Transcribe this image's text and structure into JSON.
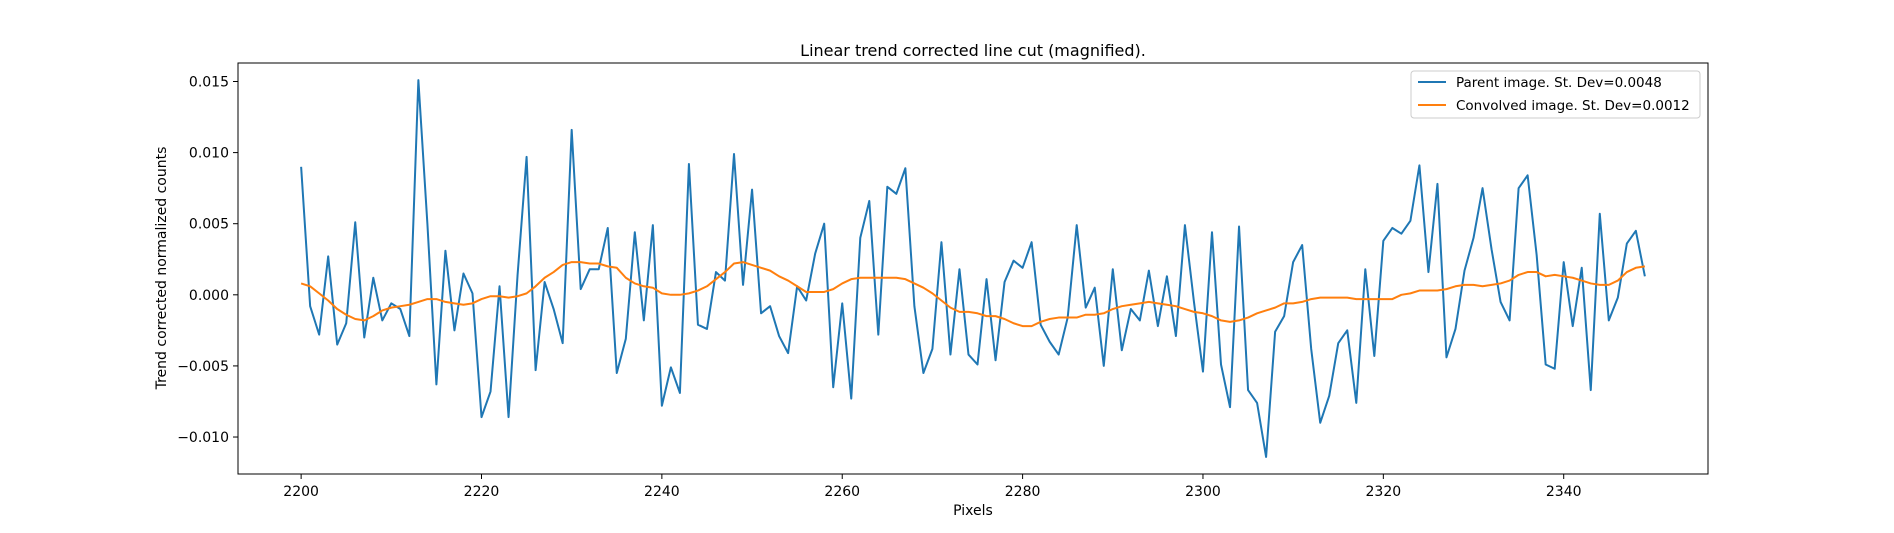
{
  "chart_data": {
    "type": "line",
    "title": "Linear trend corrected line cut (magnified).",
    "xlabel": "Pixels",
    "ylabel": "Trend corrected normalized counts",
    "xlim": [
      2193,
      2356
    ],
    "ylim": [
      -0.0126,
      0.0163
    ],
    "xticks": [
      2200,
      2220,
      2240,
      2260,
      2280,
      2300,
      2320,
      2340
    ],
    "xtick_labels": [
      "2200",
      "2220",
      "2240",
      "2260",
      "2280",
      "2300",
      "2320",
      "2340"
    ],
    "yticks": [
      0.015,
      0.01,
      0.005,
      0.0,
      -0.005,
      -0.01
    ],
    "ytick_labels": [
      "0.015",
      "0.010",
      "0.005",
      "0.000",
      "−0.005",
      "−0.010"
    ],
    "grid": false,
    "legend_position": "top-right",
    "x_start": 2200,
    "x_step": 1,
    "series": [
      {
        "name": "Parent image. St. Dev=0.0048",
        "color": "#1f77b4",
        "values": [
          0.009,
          -0.0008,
          -0.0028,
          0.0027,
          -0.0035,
          -0.002,
          0.0051,
          -0.003,
          0.0012,
          -0.0018,
          -0.0006,
          -0.001,
          -0.0029,
          0.0151,
          0.005,
          -0.0063,
          0.0031,
          -0.0025,
          0.0015,
          0.0001,
          -0.0086,
          -0.0068,
          0.0006,
          -0.0086,
          0.0014,
          0.0097,
          -0.0053,
          0.0009,
          -0.001,
          -0.0034,
          0.0116,
          0.0004,
          0.0018,
          0.0018,
          0.0047,
          -0.0055,
          -0.0031,
          0.0044,
          -0.0018,
          0.0049,
          -0.0078,
          -0.0051,
          -0.0069,
          0.0092,
          -0.0021,
          -0.0024,
          0.0016,
          0.001,
          0.0099,
          0.0007,
          0.0074,
          -0.0013,
          -0.0008,
          -0.0029,
          -0.0041,
          0.0006,
          -0.0004,
          0.0029,
          0.005,
          -0.0065,
          -0.0006,
          -0.0073,
          0.004,
          0.0066,
          -0.0028,
          0.0076,
          0.0071,
          0.0089,
          -0.0008,
          -0.0055,
          -0.0038,
          0.0037,
          -0.0042,
          0.0018,
          -0.0042,
          -0.0049,
          0.0011,
          -0.0046,
          0.0009,
          0.0024,
          0.0019,
          0.0037,
          -0.0021,
          -0.0033,
          -0.0042,
          -0.0016,
          0.0049,
          -0.0009,
          0.0005,
          -0.005,
          0.0018,
          -0.0039,
          -0.001,
          -0.0018,
          0.0017,
          -0.0022,
          0.0013,
          -0.0029,
          0.0049,
          -0.0005,
          -0.0054,
          0.0044,
          -0.0049,
          -0.0079,
          0.0048,
          -0.0067,
          -0.0076,
          -0.0114,
          -0.0026,
          -0.0015,
          0.0023,
          0.0035,
          -0.0038,
          -0.009,
          -0.0071,
          -0.0034,
          -0.0025,
          -0.0076,
          0.0018,
          -0.0043,
          0.0038,
          0.0047,
          0.0043,
          0.0052,
          0.0091,
          0.0016,
          0.0078,
          -0.0044,
          -0.0024,
          0.0017,
          0.004,
          0.0075,
          0.0032,
          -0.0005,
          -0.0018,
          0.0075,
          0.0084,
          0.0028,
          -0.0049,
          -0.0052,
          0.0023,
          -0.0022,
          0.0019,
          -0.0067,
          0.0057,
          -0.0018,
          -0.0002,
          0.0036,
          0.0045,
          0.0013
        ]
      },
      {
        "name": "Convolved image. St. Dev=0.0012",
        "color": "#ff7f0e",
        "values": [
          0.0008,
          0.0006,
          0.0001,
          -0.0004,
          -0.001,
          -0.0014,
          -0.0017,
          -0.0018,
          -0.0015,
          -0.0011,
          -0.0009,
          -0.0008,
          -0.0007,
          -0.0005,
          -0.0003,
          -0.0003,
          -0.0005,
          -0.0006,
          -0.0007,
          -0.0006,
          -0.0003,
          -0.0001,
          -0.0001,
          -0.0002,
          -0.0001,
          0.0001,
          0.0006,
          0.0012,
          0.0016,
          0.0021,
          0.0023,
          0.0023,
          0.0022,
          0.0022,
          0.002,
          0.0019,
          0.0012,
          0.0008,
          0.0006,
          0.0005,
          0.0001,
          0.0,
          0.0,
          0.0001,
          0.0003,
          0.0006,
          0.0011,
          0.0016,
          0.0022,
          0.0023,
          0.0021,
          0.0019,
          0.0017,
          0.0013,
          0.001,
          0.0006,
          0.0002,
          0.0002,
          0.0002,
          0.0004,
          0.0008,
          0.0011,
          0.0012,
          0.0012,
          0.0012,
          0.0012,
          0.0012,
          0.0011,
          0.0008,
          0.0005,
          0.0001,
          -0.0004,
          -0.0009,
          -0.0012,
          -0.0012,
          -0.0013,
          -0.0015,
          -0.0015,
          -0.0017,
          -0.002,
          -0.0022,
          -0.0022,
          -0.0019,
          -0.0017,
          -0.0016,
          -0.0016,
          -0.0016,
          -0.0014,
          -0.0014,
          -0.0013,
          -0.001,
          -0.0008,
          -0.0007,
          -0.0006,
          -0.0005,
          -0.0006,
          -0.0007,
          -0.0008,
          -0.001,
          -0.0012,
          -0.0013,
          -0.0015,
          -0.0018,
          -0.0019,
          -0.0018,
          -0.0016,
          -0.0013,
          -0.0011,
          -0.0009,
          -0.0006,
          -0.0006,
          -0.0005,
          -0.0003,
          -0.0002,
          -0.0002,
          -0.0002,
          -0.0002,
          -0.0003,
          -0.0003,
          -0.0003,
          -0.0003,
          -0.0003,
          0.0,
          0.0001,
          0.0003,
          0.0003,
          0.0003,
          0.0004,
          0.0006,
          0.0007,
          0.0007,
          0.0006,
          0.0007,
          0.0008,
          0.001,
          0.0014,
          0.0016,
          0.0016,
          0.0013,
          0.0014,
          0.0013,
          0.0012,
          0.001,
          0.0008,
          0.0007,
          0.0007,
          0.001,
          0.0016,
          0.0019,
          0.002
        ]
      }
    ]
  }
}
